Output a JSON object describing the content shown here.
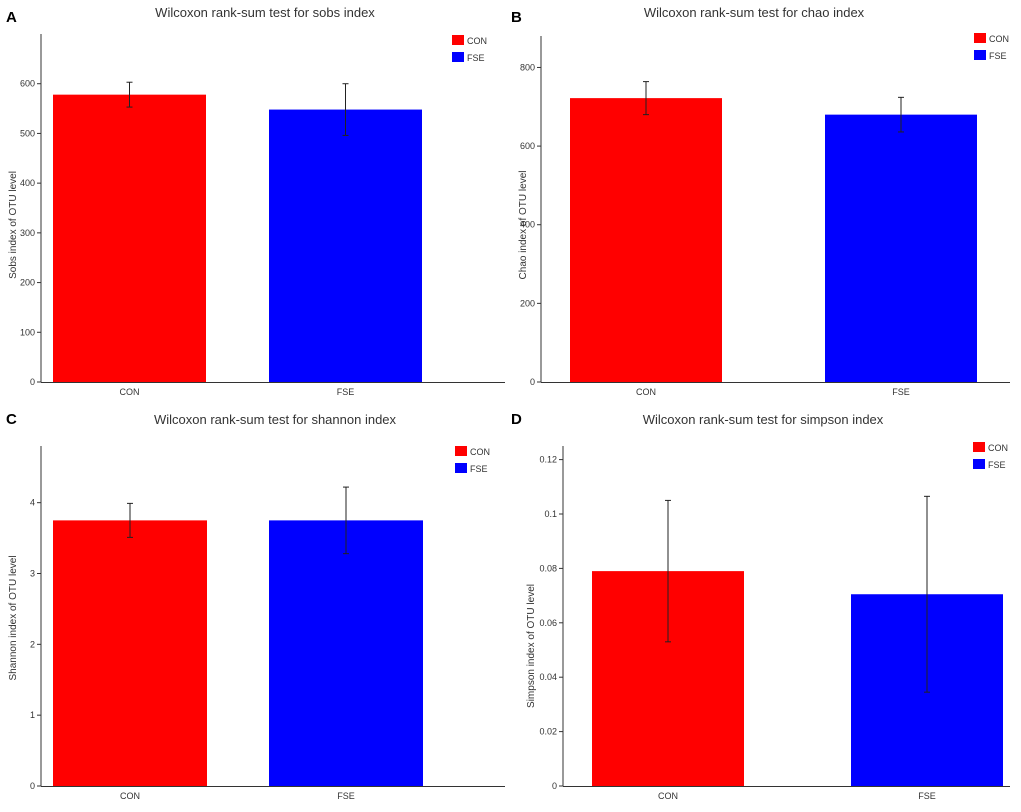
{
  "chart_data": [
    {
      "panel_label": "A",
      "type": "bar",
      "title": "Wilcoxon rank-sum test for sobs index",
      "xlabel": "",
      "ylabel": "Sobs index of OTU level",
      "categories": [
        "CON",
        "FSE"
      ],
      "values": [
        578,
        548
      ],
      "errors": [
        25,
        52
      ],
      "colors": [
        "#ff0000",
        "#0000ff"
      ],
      "ylim": [
        0,
        700
      ],
      "yticks": [
        0,
        100,
        200,
        300,
        400,
        500,
        600
      ],
      "ytick_labels": [
        "0",
        "100",
        "200",
        "300",
        "400",
        "500",
        "600"
      ],
      "legend": [
        {
          "label": "CON",
          "color": "#ff0000"
        },
        {
          "label": "FSE",
          "color": "#0000ff"
        }
      ],
      "legend_position": "top-right"
    },
    {
      "panel_label": "B",
      "type": "bar",
      "title": "Wilcoxon rank-sum test for chao index",
      "xlabel": "",
      "ylabel": "Chao index of OTU level",
      "categories": [
        "CON",
        "FSE"
      ],
      "values": [
        722,
        680
      ],
      "errors": [
        42,
        44
      ],
      "colors": [
        "#ff0000",
        "#0000ff"
      ],
      "ylim": [
        0,
        880
      ],
      "yticks": [
        0,
        200,
        400,
        600,
        800
      ],
      "ytick_labels": [
        "0",
        "200",
        "400",
        "600",
        "800"
      ],
      "legend": [
        {
          "label": "CON",
          "color": "#ff0000"
        },
        {
          "label": "FSE",
          "color": "#0000ff"
        }
      ],
      "legend_position": "top-right"
    },
    {
      "panel_label": "C",
      "type": "bar",
      "title": "Wilcoxon rank-sum test for shannon index",
      "xlabel": "",
      "ylabel": "Shannon index of OTU level",
      "categories": [
        "CON",
        "FSE"
      ],
      "values": [
        3.75,
        3.75
      ],
      "errors": [
        0.24,
        0.47
      ],
      "colors": [
        "#ff0000",
        "#0000ff"
      ],
      "ylim": [
        0,
        4.8
      ],
      "yticks": [
        0,
        1,
        2,
        3,
        4
      ],
      "ytick_labels": [
        "0",
        "1",
        "2",
        "3",
        "4"
      ],
      "legend": [
        {
          "label": "CON",
          "color": "#ff0000"
        },
        {
          "label": "FSE",
          "color": "#0000ff"
        }
      ],
      "legend_position": "top-right"
    },
    {
      "panel_label": "D",
      "type": "bar",
      "title": "Wilcoxon rank-sum test for simpson index",
      "xlabel": "",
      "ylabel": "Simpson index of OTU level",
      "categories": [
        "CON",
        "FSE"
      ],
      "values": [
        0.079,
        0.0705
      ],
      "errors": [
        0.026,
        0.036
      ],
      "colors": [
        "#ff0000",
        "#0000ff"
      ],
      "ylim": [
        0,
        0.125
      ],
      "yticks": [
        0,
        0.02,
        0.04,
        0.06,
        0.08,
        0.1,
        0.12
      ],
      "ytick_labels": [
        "0",
        "0.02",
        "0.04",
        "0.06",
        "0.08",
        "0.1",
        "0.12"
      ],
      "legend": [
        {
          "label": "CON",
          "color": "#ff0000"
        },
        {
          "label": "FSE",
          "color": "#0000ff"
        }
      ],
      "legend_position": "top-right"
    }
  ]
}
